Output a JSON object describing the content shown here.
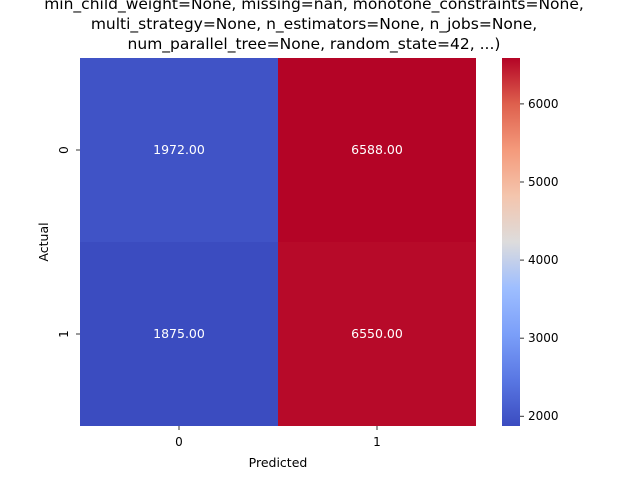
{
  "chart_data": {
    "type": "heatmap",
    "title_lines": [
      "min_child_weight=None, missing=nan, monotone_constraints=None,",
      "multi_strategy=None, n_estimators=None, n_jobs=None,",
      "num_parallel_tree=None, random_state=42, ...)"
    ],
    "xlabel": "Predicted",
    "ylabel": "Actual",
    "x_categories": [
      "0",
      "1"
    ],
    "y_categories": [
      "0",
      "1"
    ],
    "values": [
      [
        1972,
        6588
      ],
      [
        1875,
        6550
      ]
    ],
    "value_labels": [
      [
        "1972.00",
        "6588.00"
      ],
      [
        "1875.00",
        "6550.00"
      ]
    ],
    "colormap": "coolwarm",
    "color_range": [
      1875,
      6588
    ],
    "colorbar_ticks": [
      "2000",
      "3000",
      "4000",
      "5000",
      "6000"
    ],
    "colorbar_tick_values": [
      2000,
      3000,
      4000,
      5000,
      6000
    ],
    "annotation_colors": {
      "text": "#ffffff"
    }
  }
}
